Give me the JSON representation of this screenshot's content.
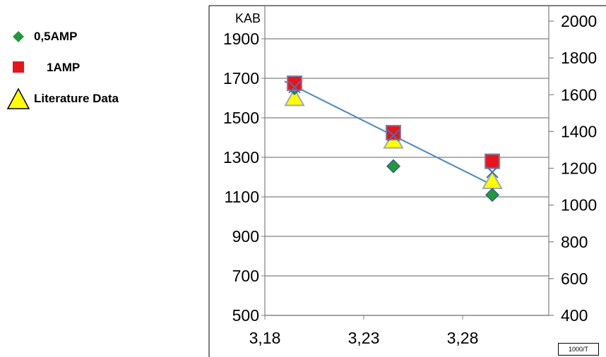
{
  "chart_data": {
    "type": "scatter",
    "title": "",
    "ylabel": "KAB",
    "xlabel": "1000/T",
    "xlim": [
      3.18,
      3.32
    ],
    "ylim": [
      500,
      2000
    ],
    "y2lim": [
      400,
      2000
    ],
    "x_ticks": [
      "3,18",
      "3,23",
      "3,28"
    ],
    "x_tick_values": [
      3.18,
      3.23,
      3.28
    ],
    "y_ticks": [
      "500",
      "700",
      "900",
      "1100",
      "1300",
      "1500",
      "1700",
      "1900"
    ],
    "y_tick_values": [
      500,
      700,
      900,
      1100,
      1300,
      1500,
      1700,
      1900
    ],
    "y2_ticks": [
      "400",
      "600",
      "800",
      "1000",
      "1200",
      "1400",
      "1600",
      "1800",
      "2000"
    ],
    "y2_tick_values": [
      400,
      600,
      800,
      1000,
      1200,
      1400,
      1600,
      1800,
      2000
    ],
    "grid": true,
    "legend_position": "top-left",
    "series": [
      {
        "name": "0,5AMP",
        "marker": "diamond",
        "color": "#1e9a3a",
        "axis": "left",
        "x": [
          3.195,
          3.245,
          3.295
        ],
        "y": [
          1650,
          1255,
          1110
        ]
      },
      {
        "name": "1AMP",
        "marker": "square",
        "color": "#e8141c",
        "axis": "left",
        "x": [
          3.195,
          3.245,
          3.295
        ],
        "y": [
          1675,
          1425,
          1280
        ]
      },
      {
        "name": "Literature Data",
        "marker": "triangle",
        "color": "#ffff00",
        "axis": "left",
        "x": [
          3.195,
          3.245,
          3.295
        ],
        "y": [
          1600,
          1385,
          1180
        ]
      }
    ],
    "extra_markers": {
      "marker": "x",
      "color": "#4a6fb0",
      "x": [
        3.195,
        3.245,
        3.295
      ],
      "y": [
        1655,
        1410,
        1225
      ]
    },
    "trendline": {
      "color": "#4a86c8",
      "x": [
        3.19,
        3.295
      ],
      "y": [
        1685,
        1160
      ]
    }
  }
}
